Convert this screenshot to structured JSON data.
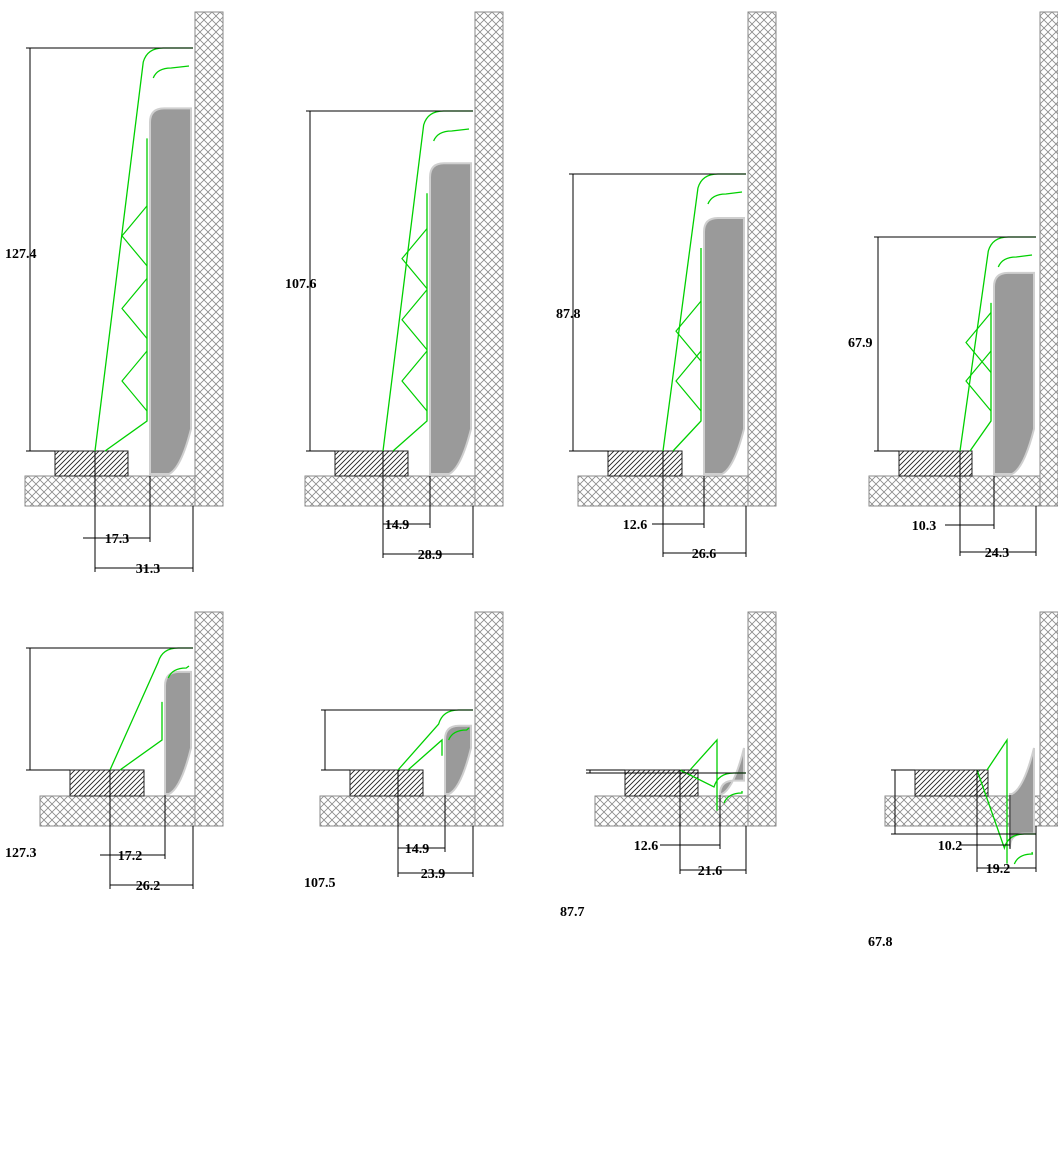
{
  "colors": {
    "outline": "#00d000",
    "fill_gray": "#9a9a9a",
    "crosshatch": "#888888",
    "dimension": "#000000"
  },
  "rows": [
    {
      "sections": [
        {
          "height_label": "127.4",
          "inner_label": "17.3",
          "outer_label": "31.3"
        },
        {
          "height_label": "107.6",
          "inner_label": "14.9",
          "outer_label": "28.9"
        },
        {
          "height_label": "87.8",
          "inner_label": "12.6",
          "outer_label": "26.6"
        },
        {
          "height_label": "67.9",
          "inner_label": "10.3",
          "outer_label": "24.3"
        }
      ]
    },
    {
      "sections": [
        {
          "height_label": "127.3",
          "inner_label": "17.2",
          "outer_label": "26.2"
        },
        {
          "height_label": "107.5",
          "inner_label": "14.9",
          "outer_label": "23.9"
        },
        {
          "height_label": "87.7",
          "inner_label": "12.6",
          "outer_label": "21.6"
        },
        {
          "height_label": "67.8",
          "inner_label": "10.2",
          "outer_label": "19.2"
        }
      ]
    }
  ]
}
